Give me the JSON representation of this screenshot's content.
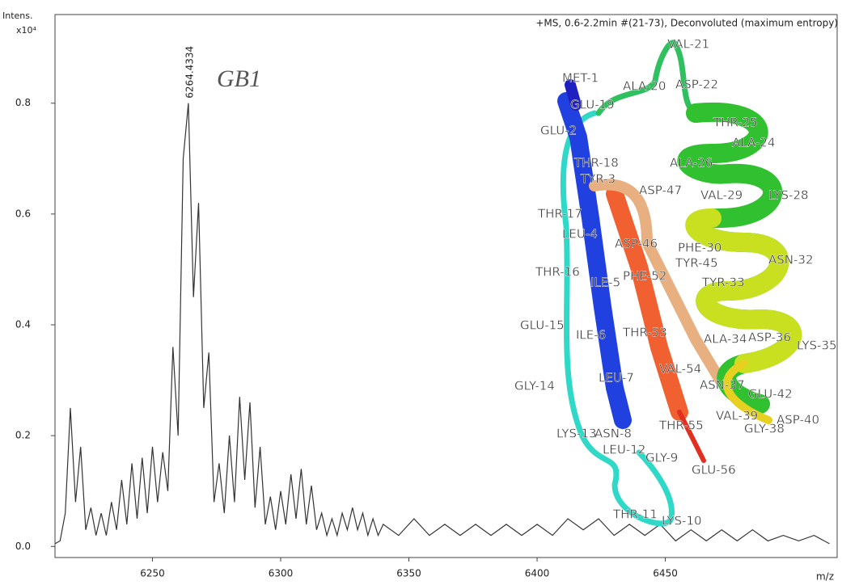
{
  "chart_data": {
    "type": "line",
    "title": "+MS, 0.6-2.2min #(21-73), Deconvoluted (maximum entropy)",
    "y_label": "Intens.",
    "y_scale_label": "x10⁴",
    "x_label": "m/z",
    "color": "#333333",
    "x": [
      6212,
      6214,
      6216,
      6218,
      6220,
      6222,
      6224,
      6226,
      6228,
      6230,
      6232,
      6234,
      6236,
      6238,
      6240,
      6242,
      6244,
      6246,
      6248,
      6250,
      6252,
      6254,
      6256,
      6258,
      6260,
      6262,
      6264,
      6266,
      6268,
      6270,
      6272,
      6274,
      6276,
      6278,
      6280,
      6282,
      6284,
      6286,
      6288,
      6290,
      6292,
      6294,
      6296,
      6298,
      6300,
      6302,
      6304,
      6306,
      6308,
      6310,
      6312,
      6314,
      6316,
      6318,
      6320,
      6322,
      6324,
      6326,
      6328,
      6330,
      6332,
      6334,
      6336,
      6338,
      6340,
      6346,
      6352,
      6358,
      6364,
      6370,
      6376,
      6382,
      6388,
      6394,
      6400,
      6406,
      6412,
      6418,
      6424,
      6430,
      6436,
      6442,
      6448,
      6454,
      6460,
      6466,
      6472,
      6478,
      6484,
      6490,
      6496,
      6502,
      6508,
      6514
    ],
    "values": [
      0.005,
      0.01,
      0.06,
      0.25,
      0.08,
      0.18,
      0.03,
      0.07,
      0.02,
      0.06,
      0.02,
      0.08,
      0.03,
      0.12,
      0.04,
      0.15,
      0.05,
      0.16,
      0.06,
      0.18,
      0.08,
      0.17,
      0.1,
      0.36,
      0.2,
      0.7,
      0.8,
      0.45,
      0.62,
      0.25,
      0.35,
      0.08,
      0.15,
      0.06,
      0.2,
      0.08,
      0.27,
      0.12,
      0.26,
      0.07,
      0.18,
      0.04,
      0.09,
      0.03,
      0.1,
      0.04,
      0.13,
      0.05,
      0.14,
      0.04,
      0.11,
      0.03,
      0.06,
      0.02,
      0.05,
      0.02,
      0.06,
      0.03,
      0.07,
      0.03,
      0.06,
      0.02,
      0.05,
      0.02,
      0.04,
      0.02,
      0.05,
      0.02,
      0.04,
      0.02,
      0.04,
      0.02,
      0.04,
      0.02,
      0.04,
      0.02,
      0.05,
      0.03,
      0.05,
      0.02,
      0.04,
      0.02,
      0.04,
      0.01,
      0.03,
      0.01,
      0.03,
      0.01,
      0.03,
      0.01,
      0.02,
      0.01,
      0.02,
      0.005
    ],
    "xlim": [
      6212,
      6517
    ],
    "ylim": [
      -0.02,
      0.96
    ],
    "xticks": [
      6250,
      6300,
      6350,
      6400,
      6450
    ],
    "yticks": [
      {
        "value": 0,
        "label": "0.0"
      },
      {
        "value": 0.2,
        "label": "0.2"
      },
      {
        "value": 0.4,
        "label": "0.4"
      },
      {
        "value": 0.6,
        "label": "0.6"
      },
      {
        "value": 0.8,
        "label": "0.8"
      }
    ],
    "peak_label": "6264.4334",
    "note": "GB1",
    "residue_labels": [
      "VAL-21",
      "MET-1",
      "ALA-20",
      "ASP-22",
      "GLU-19",
      "GLU-2",
      "THR-25",
      "ALA-24",
      "THR-18",
      "ALA-26",
      "TYR-3",
      "ASP-47",
      "VAL-29",
      "LYS-28",
      "THR-17",
      "LEU-4",
      "ASP-46",
      "PHE-30",
      "ASN-32",
      "TYR-45",
      "THR-16",
      "ILE-5",
      "PHE-52",
      "TYR-33",
      "GLU-15",
      "ILE-6",
      "THR-53",
      "ALA-34",
      "ASP-36",
      "LYS-35",
      "GLY-14",
      "LEU-7",
      "VAL-54",
      "ASN-37",
      "GLU-42",
      "LYS-13",
      "ASN-8",
      "THR-55",
      "VAL-39",
      "GLY-38",
      "ASP-40",
      "LEU-12",
      "GLY-9",
      "GLU-56",
      "THR-11",
      "LYS-10"
    ]
  }
}
